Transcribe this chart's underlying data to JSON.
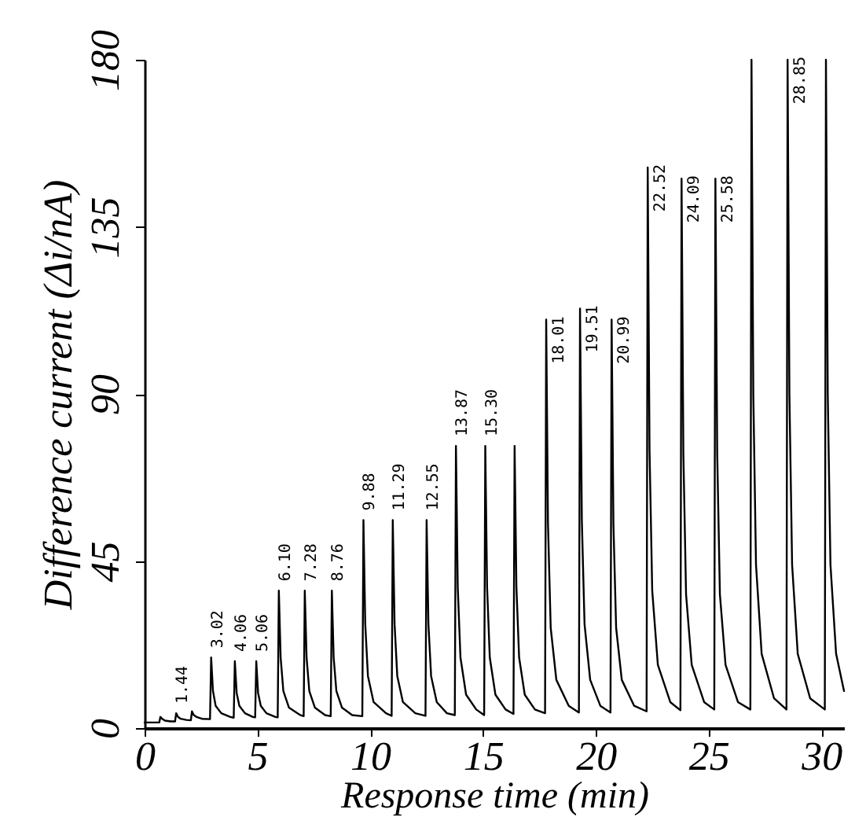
{
  "chart_data": {
    "type": "line",
    "xlabel": "Response time (min)",
    "ylabel": "Difference current (Δi/nA)",
    "color": "#000000",
    "line_style": "solid",
    "x": [
      0,
      0.3,
      0.65,
      0.7,
      0.78,
      0.9,
      1.15,
      1.35,
      1.4,
      1.48,
      1.6,
      1.85,
      2.05,
      2.1,
      2.18,
      2.3,
      2.55,
      2.9,
      2.95,
      3.03,
      3.15,
      3.4,
      3.8,
      3.95,
      4.0,
      4.08,
      4.2,
      4.45,
      4.8,
      4.9,
      4.95,
      5.03,
      5.15,
      5.4,
      5.8,
      5.9,
      5.95,
      6.03,
      6.15,
      6.4,
      6.9,
      7.05,
      7.1,
      7.18,
      7.3,
      7.55,
      8.0,
      8.25,
      8.3,
      8.38,
      8.5,
      8.75,
      9.2,
      9.65,
      9.7,
      9.78,
      9.9,
      10.15,
      10.7,
      10.95,
      11.0,
      11.08,
      11.2,
      11.45,
      12.0,
      12.45,
      12.5,
      12.58,
      12.7,
      12.95,
      13.4,
      13.75,
      13.8,
      13.88,
      14.0,
      14.25,
      14.7,
      15.05,
      15.1,
      15.18,
      15.3,
      15.55,
      16.0,
      16.35,
      16.4,
      16.48,
      16.6,
      16.85,
      17.3,
      17.75,
      17.8,
      17.88,
      18.0,
      18.25,
      18.8,
      19.25,
      19.3,
      19.38,
      19.5,
      19.75,
      20.2,
      20.65,
      20.7,
      20.78,
      20.9,
      21.15,
      21.7,
      22.25,
      22.3,
      22.38,
      22.5,
      22.75,
      23.3,
      23.75,
      23.8,
      23.88,
      24.0,
      24.25,
      24.8,
      25.25,
      25.3,
      25.38,
      25.5,
      25.75,
      26.3,
      26.85,
      26.9,
      26.98,
      27.1,
      27.35,
      27.9,
      28.45,
      28.5,
      28.58,
      28.7,
      28.95,
      29.5,
      30.15,
      30.2,
      30.28,
      30.4,
      30.65,
      31
    ],
    "values": [
      1.5,
      1.5,
      1.5,
      3,
      2.5,
      2,
      1.8,
      1.8,
      4,
      3,
      2.5,
      2.2,
      2.1,
      4.5,
      3.5,
      3,
      2.5,
      2.4,
      19,
      10,
      6,
      4,
      3,
      2.8,
      18,
      9.5,
      6,
      4,
      3,
      2.9,
      18,
      9.5,
      6,
      4,
      3,
      2.9,
      37,
      19,
      10,
      5.5,
      3.5,
      3.2,
      37,
      19,
      10,
      5.5,
      3.5,
      3.2,
      37,
      19,
      10,
      5.5,
      3.5,
      3.2,
      56,
      28,
      14,
      7,
      4,
      3.3,
      56,
      28,
      14,
      7,
      4,
      3.3,
      56,
      28,
      14,
      7,
      4,
      3.5,
      76,
      38,
      19,
      9,
      5,
      3.5,
      76,
      38,
      19,
      9,
      5,
      3.8,
      76,
      38,
      19,
      9,
      5,
      4,
      110,
      55,
      27,
      13,
      6,
      4.2,
      113,
      56,
      28,
      13,
      6,
      4.2,
      110,
      55,
      27,
      13,
      6,
      4.5,
      151,
      75,
      37,
      17,
      7,
      4.8,
      148,
      74,
      36,
      17,
      7,
      5,
      148,
      74,
      36,
      17,
      7,
      5,
      180,
      90,
      44,
      20,
      8,
      5,
      180,
      90,
      44,
      20,
      8,
      5,
      180,
      90,
      44,
      20,
      10
    ],
    "xlim": [
      0,
      31
    ],
    "xticks": [
      0,
      5,
      10,
      15,
      20,
      25,
      30
    ],
    "ylim": [
      0,
      180
    ],
    "yticks": [
      0,
      45,
      90,
      135,
      180
    ],
    "annotations": [
      {
        "text": "1.44",
        "x": 1.4,
        "y": 4
      },
      {
        "text": "3.02",
        "x": 2.95,
        "y": 19
      },
      {
        "text": "4.06",
        "x": 4.0,
        "y": 18
      },
      {
        "text": "5.06",
        "x": 4.95,
        "y": 18
      },
      {
        "text": "6.10",
        "x": 5.95,
        "y": 37
      },
      {
        "text": "7.28",
        "x": 7.1,
        "y": 37
      },
      {
        "text": "8.76",
        "x": 8.3,
        "y": 37
      },
      {
        "text": "9.88",
        "x": 9.7,
        "y": 56
      },
      {
        "text": "11.29",
        "x": 11.0,
        "y": 56
      },
      {
        "text": "12.55",
        "x": 12.5,
        "y": 56
      },
      {
        "text": "13.87",
        "x": 13.8,
        "y": 76
      },
      {
        "text": "15.30",
        "x": 15.1,
        "y": 76
      },
      {
        "text": "18.01",
        "x": 17.8,
        "y": 110
      },
      {
        "text": "19.51",
        "x": 19.3,
        "y": 113
      },
      {
        "text": "20.99",
        "x": 20.7,
        "y": 110
      },
      {
        "text": "22.52",
        "x": 22.3,
        "y": 151
      },
      {
        "text": "24.09",
        "x": 23.8,
        "y": 148
      },
      {
        "text": "25.58",
        "x": 25.3,
        "y": 148
      },
      {
        "text": "28.85",
        "x": 28.5,
        "y": 180
      }
    ]
  }
}
